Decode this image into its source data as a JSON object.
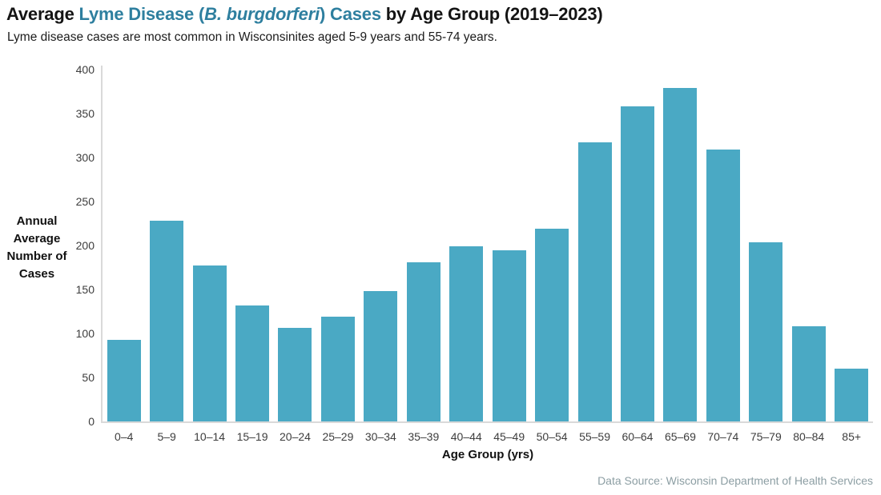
{
  "header": {
    "title_parts": {
      "prefix": "Average ",
      "highlight_pre": "Lyme Disease (",
      "highlight_italic": "B. burgdorferi",
      "highlight_post": ") Cases",
      "suffix": " by Age Group (2019–2023)"
    },
    "subtitle": "Lyme disease cases are most common in Wisconsinites aged 5-9 years and 55-74 years."
  },
  "chart_data": {
    "type": "bar",
    "title": "Average Lyme Disease (B. burgdorferi) Cases by Age Group (2019–2023)",
    "categories": [
      "0–4",
      "5–9",
      "10–14",
      "15–19",
      "20–24",
      "25–29",
      "30–34",
      "35–39",
      "40–44",
      "45–49",
      "50–54",
      "55–59",
      "60–64",
      "65–69",
      "70–74",
      "75–79",
      "80–84",
      "85+"
    ],
    "values": [
      93,
      228,
      177,
      132,
      106,
      119,
      148,
      181,
      199,
      195,
      219,
      317,
      358,
      379,
      309,
      204,
      108,
      60
    ],
    "xlabel": "Age Group (yrs)",
    "ylabel": "Annual Average Number of Cases",
    "ylabel_lines": [
      "Annual",
      "Average",
      "Number of",
      "Cases"
    ],
    "ylim": [
      0,
      400
    ],
    "yticks": [
      0,
      50,
      100,
      150,
      200,
      250,
      300,
      350,
      400
    ],
    "grid": false,
    "legend": "none",
    "bar_color": "#4AA9C4"
  },
  "footer": {
    "source": "Data Source: Wisconsin Department of Health Services"
  },
  "colors": {
    "accent_teal": "#2E7F9F",
    "bar": "#4AA9C4",
    "axis_line": "#D9D9D9",
    "tick_text": "#3d3d3d",
    "source_text": "#8C9EA3"
  }
}
